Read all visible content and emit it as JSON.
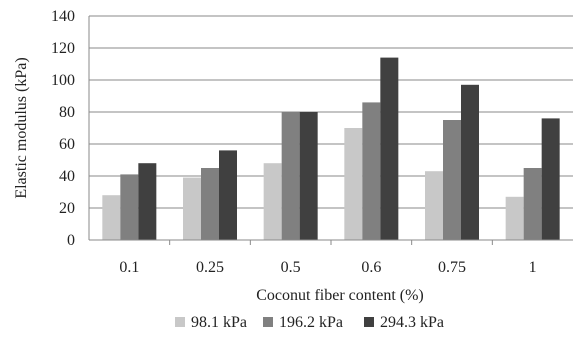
{
  "chart_data": {
    "type": "bar",
    "title": "",
    "xlabel": "Coconut fiber content (%)",
    "ylabel": "Elastic modulus (kPa)",
    "ylim": [
      0,
      140
    ],
    "yticks": [
      0,
      20,
      40,
      60,
      80,
      100,
      120,
      140
    ],
    "grid": true,
    "legend_position": "bottom",
    "categories": [
      "0.1",
      "0.25",
      "0.5",
      "0.6",
      "0.75",
      "1"
    ],
    "series": [
      {
        "name": "98.1 kPa",
        "color": "#c8c8c8",
        "values": [
          28,
          39,
          48,
          70,
          43,
          27
        ]
      },
      {
        "name": "196.2 kPa",
        "color": "#808080",
        "values": [
          41,
          45,
          80,
          86,
          75,
          45
        ]
      },
      {
        "name": "294.3 kPa",
        "color": "#404040",
        "values": [
          48,
          56,
          80,
          114,
          97,
          76
        ]
      }
    ]
  }
}
